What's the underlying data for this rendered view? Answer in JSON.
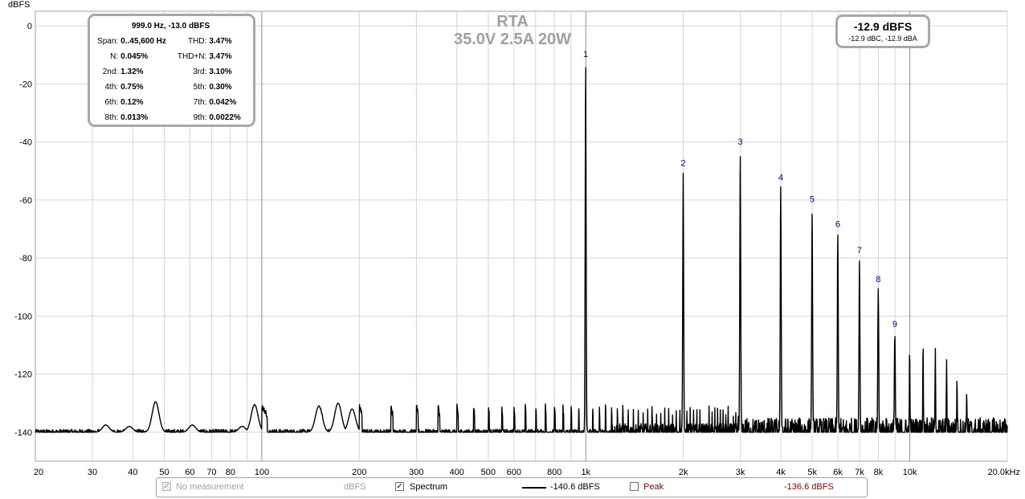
{
  "chart_data": {
    "type": "line",
    "title": "RTA",
    "subtitle": "35.0V 2.5A 20W",
    "ylabel": "dBFS",
    "xlabel": "",
    "x_scale": "log",
    "xlim": [
      20,
      20000
    ],
    "ylim": [
      -150,
      5
    ],
    "yticks": [
      0,
      -20,
      -40,
      -60,
      -80,
      -100,
      -120,
      -140
    ],
    "ytick_labels": [
      "0",
      "-20",
      "-40",
      "-60",
      "-80",
      "-100",
      "-120",
      "-140"
    ],
    "xticks": [
      20,
      30,
      40,
      50,
      60,
      70,
      80,
      100,
      200,
      300,
      400,
      500,
      600,
      800,
      1000,
      2000,
      3000,
      4000,
      5000,
      6000,
      7000,
      8000,
      10000,
      20000
    ],
    "xtick_labels": [
      "20",
      "30",
      "40",
      "50",
      "60",
      "70",
      "80",
      "100",
      "200",
      "300",
      "400",
      "500",
      "600",
      "800",
      "1k",
      "2k",
      "3k",
      "4k",
      "5k",
      "6k",
      "7k",
      "8k",
      "10k",
      "20.0kHz"
    ],
    "grid": true,
    "series": [
      {
        "name": "Spectrum",
        "color": "#000000",
        "noise_floor": -140,
        "harmonic_peaks": [
          {
            "label": "1",
            "x": 999,
            "y": -13.0
          },
          {
            "label": "2",
            "x": 1998,
            "y": -50.5
          },
          {
            "label": "3",
            "x": 2997,
            "y": -43.2
          },
          {
            "label": "4",
            "x": 3996,
            "y": -55.5
          },
          {
            "label": "5",
            "x": 4995,
            "y": -63.0
          },
          {
            "label": "6",
            "x": 5994,
            "y": -71.5
          },
          {
            "label": "7",
            "x": 6993,
            "y": -80.5
          },
          {
            "label": "8",
            "x": 7992,
            "y": -90.5
          },
          {
            "label": "9",
            "x": 8991,
            "y": -106.0
          }
        ],
        "higher_harmonics": [
          {
            "x": 9990,
            "y": -110.5
          },
          {
            "x": 10989,
            "y": -108.5
          },
          {
            "x": 11988,
            "y": -111.0
          },
          {
            "x": 12987,
            "y": -115.0
          },
          {
            "x": 13986,
            "y": -121.5
          },
          {
            "x": 14985,
            "y": -126.5
          }
        ],
        "low_freq_bumps": [
          {
            "x": 33,
            "y": -137.5
          },
          {
            "x": 39,
            "y": -138.0
          },
          {
            "x": 47,
            "y": -129.5
          },
          {
            "x": 61,
            "y": -137.5
          },
          {
            "x": 87,
            "y": -138.0
          },
          {
            "x": 95,
            "y": -130.5
          },
          {
            "x": 150,
            "y": -131.0
          },
          {
            "x": 172,
            "y": -130.0
          },
          {
            "x": 190,
            "y": -132.0
          }
        ]
      }
    ]
  },
  "distortion_panel": {
    "header": "999.0 Hz, -13.0 dBFS",
    "rows": [
      {
        "l1": "Span:",
        "v1": "0..45,600 Hz",
        "l2": "THD:",
        "v2": "3.47%"
      },
      {
        "l1": "N:",
        "v1": "0.045%",
        "l2": "THD+N:",
        "v2": "3.47%"
      },
      {
        "l1": "2nd:",
        "v1": "1.32%",
        "l2": "3rd:",
        "v2": "3.10%"
      },
      {
        "l1": "4th:",
        "v1": "0.75%",
        "l2": "5th:",
        "v2": "0.30%"
      },
      {
        "l1": "6th:",
        "v1": "0.12%",
        "l2": "7th:",
        "v2": "0.042%"
      },
      {
        "l1": "8th:",
        "v1": "0.013%",
        "l2": "9th:",
        "v2": "0.0022%"
      }
    ]
  },
  "level_panel": {
    "main": "-12.9 dBFS",
    "sub": "-12.9 dBC, -12.9 dBA"
  },
  "legend": {
    "no_measurement_label": "No measurement",
    "no_measurement_unit": "dBFS",
    "spectrum_label": "Spectrum",
    "spectrum_value": "-140.6 dBFS",
    "peak_label": "Peak",
    "peak_value": "-136.6 dBFS",
    "peak_color": "#8b0000",
    "disabled_color": "#a0a0a0"
  }
}
